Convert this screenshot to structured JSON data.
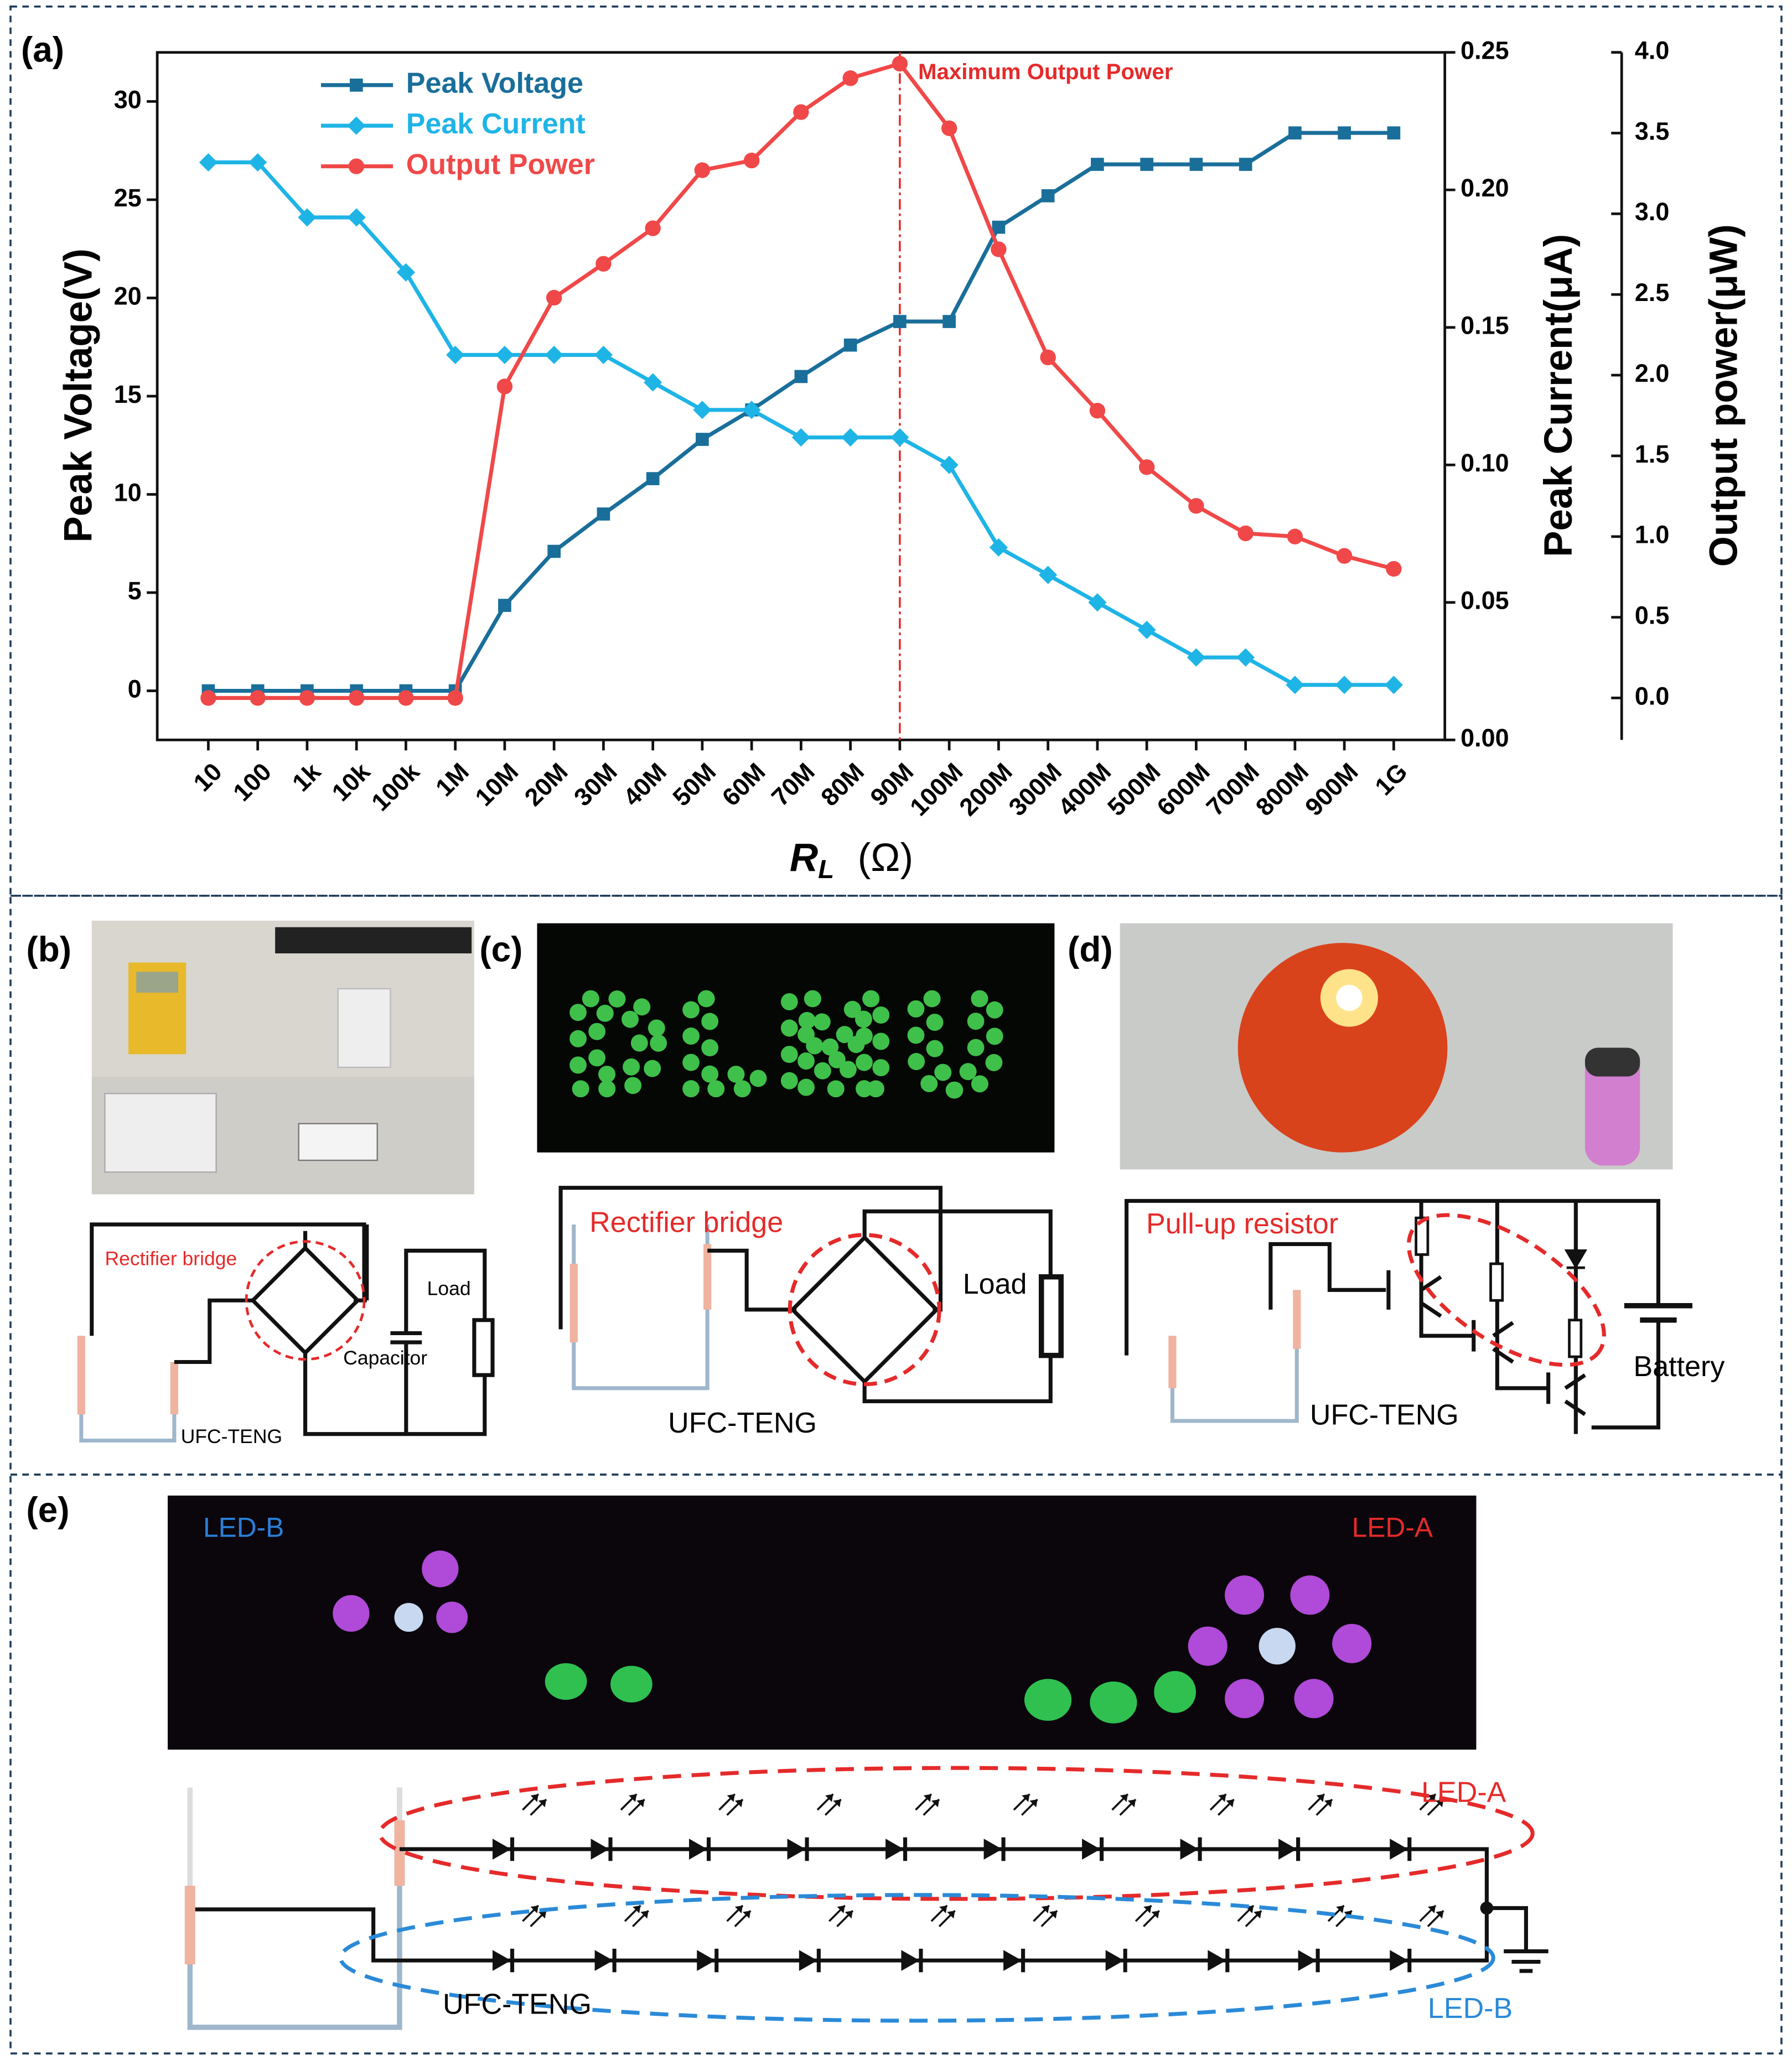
{
  "chart_data": {
    "type": "line",
    "panel_label": "(a)",
    "categories": [
      "10",
      "100",
      "1k",
      "10k",
      "100k",
      "1M",
      "10M",
      "20M",
      "30M",
      "40M",
      "50M",
      "60M",
      "70M",
      "80M",
      "90M",
      "100M",
      "200M",
      "300M",
      "400M",
      "500M",
      "600M",
      "700M",
      "800M",
      "900M",
      "1G"
    ],
    "xlabel": {
      "symbol": "R",
      "subscript": "L",
      "unit": "(Ω)"
    },
    "ylabel": "Peak Voltage(V)",
    "y2label": "Peak Current(μA)",
    "y3label": "Output power(μW)",
    "ylim": [
      -2.5,
      32.5
    ],
    "yticks": [
      0,
      5,
      10,
      15,
      20,
      25,
      30
    ],
    "y2lim": [
      0,
      0.25
    ],
    "y2ticks": [
      {
        "value": 0,
        "label": "0.00"
      },
      {
        "value": 0.05,
        "label": "0.05"
      },
      {
        "value": 0.1,
        "label": "0.10"
      },
      {
        "value": 0.15,
        "label": "0.15"
      },
      {
        "value": 0.2,
        "label": "0.20"
      },
      {
        "value": 0.25,
        "label": "0.25"
      }
    ],
    "y3lim": [
      -0.26,
      4.0
    ],
    "y3ticks": [
      {
        "value": 0,
        "label": "0.0"
      },
      {
        "value": 0.5,
        "label": "0.5"
      },
      {
        "value": 1,
        "label": "1.0"
      },
      {
        "value": 1.5,
        "label": "1.5"
      },
      {
        "value": 2,
        "label": "2.0"
      },
      {
        "value": 2.5,
        "label": "2.5"
      },
      {
        "value": 3,
        "label": "3.0"
      },
      {
        "value": 3.5,
        "label": "3.5"
      },
      {
        "value": 4,
        "label": "4.0"
      }
    ],
    "annotation": {
      "text": "Maximum Output Power",
      "at": "90M",
      "color": "#e52a2a"
    },
    "legend": "upper left",
    "series": [
      {
        "name": "Peak Voltage",
        "color": "#1a6e9a",
        "marker": "square",
        "axis": "y",
        "values": [
          0,
          0,
          0,
          0,
          0,
          0,
          4.35,
          7.1,
          9.0,
          10.8,
          12.8,
          14.3,
          16.0,
          17.6,
          18.8,
          18.8,
          23.6,
          25.2,
          26.8,
          26.8,
          26.8,
          26.8,
          28.4,
          28.4,
          28.4
        ]
      },
      {
        "name": "Peak Current",
        "color": "#1fb4e6",
        "marker": "diamond",
        "axis": "y2",
        "values": [
          0.21,
          0.21,
          0.19,
          0.19,
          0.17,
          0.14,
          0.14,
          0.14,
          0.14,
          0.13,
          0.12,
          0.12,
          0.11,
          0.11,
          0.11,
          0.1,
          0.07,
          0.06,
          0.05,
          0.04,
          0.03,
          0.03,
          0.02,
          0.02,
          0.02
        ]
      },
      {
        "name": "Output Power",
        "color": "#f04848",
        "marker": "circle",
        "axis": "y3",
        "values": [
          0,
          0,
          0,
          0,
          0,
          0,
          1.93,
          2.48,
          2.69,
          2.91,
          3.27,
          3.33,
          3.63,
          3.84,
          3.93,
          3.53,
          2.78,
          2.11,
          1.78,
          1.43,
          1.19,
          1.02,
          1.0,
          0.88,
          0.8
        ]
      }
    ]
  },
  "panels": {
    "b": {
      "label": "(b)",
      "bridge": "Rectifier bridge",
      "load": "Load",
      "capacitor": "Capacitor",
      "source": "UFC-TENG"
    },
    "c": {
      "label": "(c)",
      "photo_text": "DLMU",
      "bridge": "Rectifier bridge",
      "load": "Load",
      "source": "UFC-TENG"
    },
    "d": {
      "label": "(d)",
      "resistor": "Pull-up resistor",
      "battery": "Battery",
      "source": "UFC-TENG"
    },
    "e": {
      "label": "(e)",
      "photo_left": "LED-B",
      "photo_right": "LED-A",
      "led_a": "LED-A",
      "led_b": "LED-B",
      "source": "UFC-TENG"
    }
  }
}
